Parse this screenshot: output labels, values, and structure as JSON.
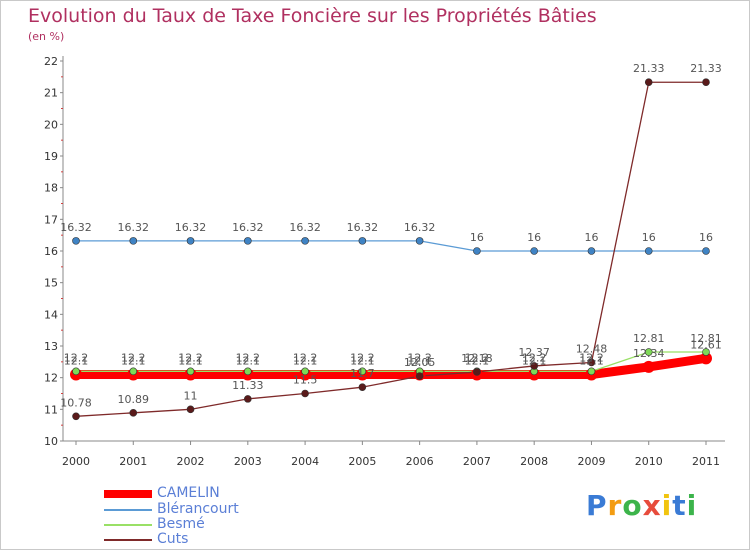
{
  "chart_data": {
    "type": "line",
    "title": "Evolution du Taux de Taxe Foncière sur les Propriétés Bâties",
    "ylabel": "(en %)",
    "xlabel": "",
    "x": [
      "2000",
      "2001",
      "2002",
      "2003",
      "2004",
      "2005",
      "2006",
      "2007",
      "2008",
      "2009",
      "2010",
      "2011"
    ],
    "yticks": [
      "10",
      "11",
      "12",
      "13",
      "14",
      "15",
      "16",
      "17",
      "18",
      "19",
      "20",
      "21",
      "22"
    ],
    "ylim": [
      10,
      22
    ],
    "grid": false,
    "legend_position": "bottom-left",
    "series": [
      {
        "name": "CAMELIN",
        "color": "#ff0000",
        "values": [
          12.1,
          12.1,
          12.1,
          12.1,
          12.1,
          12.1,
          12.1,
          12.1,
          12.1,
          12.1,
          12.34,
          12.61
        ],
        "labels": [
          "12.1",
          "12.1",
          "12.1",
          "12.1",
          "12.1",
          "12.1",
          "12.1",
          "12.1",
          "12.1",
          "12.1",
          "12.34",
          "12.61"
        ]
      },
      {
        "name": "Blérancourt",
        "color": "#5b9bd5",
        "values": [
          16.32,
          16.32,
          16.32,
          16.32,
          16.32,
          16.32,
          16.32,
          16,
          16,
          16,
          16,
          16
        ],
        "labels": [
          "16.32",
          "16.32",
          "16.32",
          "16.32",
          "16.32",
          "16.32",
          "16.32",
          "16",
          "16",
          "16",
          "16",
          "16"
        ]
      },
      {
        "name": "Besmé",
        "color": "#99e066",
        "values": [
          12.2,
          12.2,
          12.2,
          12.2,
          12.2,
          12.2,
          12.2,
          12.2,
          12.2,
          12.2,
          12.81,
          12.81
        ],
        "labels": [
          "12.2",
          "12.2",
          "12.2",
          "12.2",
          "12.2",
          "12.2",
          "12.2",
          "12.2",
          "12.2",
          "12.2",
          "12.81",
          "12.81"
        ]
      },
      {
        "name": "Cuts",
        "color": "#7f2a2a",
        "values": [
          10.78,
          10.89,
          11,
          11.33,
          11.5,
          11.7,
          12.05,
          12.18,
          12.37,
          12.48,
          21.33,
          21.33
        ],
        "labels": [
          "10.78",
          "10.89",
          "11",
          "11.33",
          "11.5",
          "11.7",
          "12.05",
          "12.18",
          "12.37",
          "12.48",
          "21.33",
          "21.33"
        ]
      }
    ]
  },
  "brand": {
    "text": "Proxiti"
  }
}
